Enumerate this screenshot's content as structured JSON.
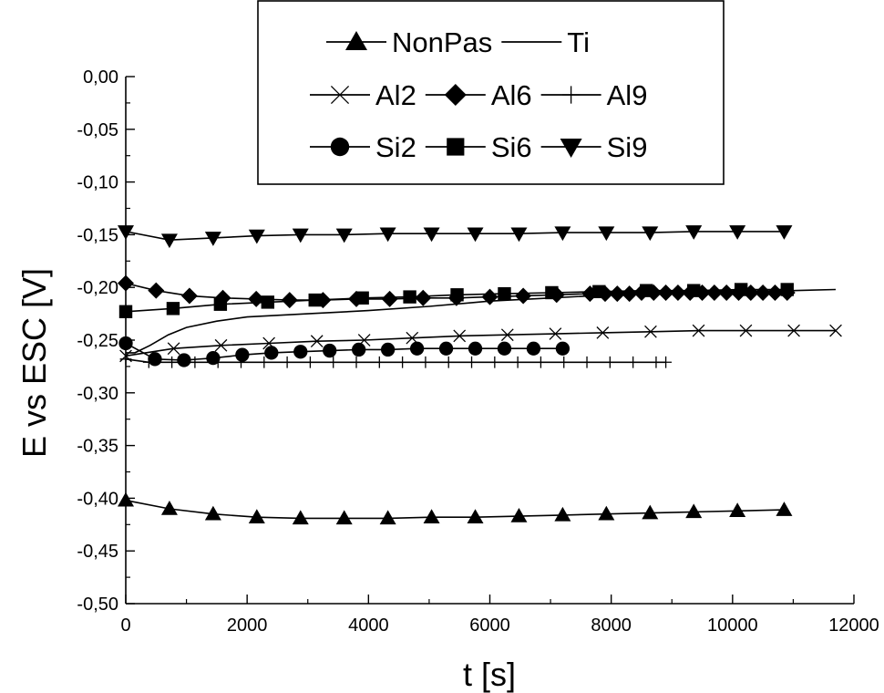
{
  "chart_data": {
    "type": "line",
    "title": "",
    "xlabel": "t [s]",
    "ylabel": "E vs ESC [V]",
    "xlim": [
      0,
      12000
    ],
    "ylim": [
      -0.5,
      0.0
    ],
    "x_ticks": [
      "0",
      "2000",
      "4000",
      "6000",
      "8000",
      "10000",
      "12000"
    ],
    "y_ticks": [
      "0,00",
      "-0,05",
      "-0,10",
      "-0,15",
      "-0,20",
      "-0,25",
      "-0,30",
      "-0,35",
      "-0,40",
      "-0,45",
      "-0,50"
    ],
    "grid": false,
    "legend_position": "top-center",
    "legend_rows": [
      [
        "NonPas",
        "Ti"
      ],
      [
        "Al2",
        "Al6",
        "Al9"
      ],
      [
        "Si2",
        "Si6",
        "Si9"
      ]
    ],
    "series": [
      {
        "name": "NonPas",
        "marker": "triangle-up",
        "x": [
          0,
          720,
          1440,
          2160,
          2880,
          3600,
          4320,
          5040,
          5760,
          6480,
          7200,
          7920,
          8640,
          9360,
          10080,
          10850
        ],
        "y": [
          -0.402,
          -0.41,
          -0.415,
          -0.418,
          -0.419,
          -0.419,
          -0.419,
          -0.418,
          -0.418,
          -0.417,
          -0.416,
          -0.415,
          -0.414,
          -0.413,
          -0.412,
          -0.411
        ]
      },
      {
        "name": "Ti",
        "marker": "none",
        "x": [
          0,
          150,
          400,
          700,
          1000,
          1500,
          2000,
          3000,
          4000,
          5000,
          6000,
          7000,
          8000,
          9000,
          10000,
          11000,
          11700
        ],
        "y": [
          -0.262,
          -0.262,
          -0.255,
          -0.245,
          -0.238,
          -0.232,
          -0.228,
          -0.225,
          -0.222,
          -0.218,
          -0.213,
          -0.21,
          -0.207,
          -0.205,
          -0.204,
          -0.203,
          -0.202
        ]
      },
      {
        "name": "Al2",
        "marker": "x",
        "x": [
          0,
          790,
          1570,
          2360,
          3150,
          3930,
          4720,
          5500,
          6290,
          7080,
          7860,
          8650,
          9440,
          10220,
          11010,
          11700
        ],
        "y": [
          -0.265,
          -0.258,
          -0.255,
          -0.253,
          -0.251,
          -0.25,
          -0.248,
          -0.246,
          -0.245,
          -0.244,
          -0.243,
          -0.242,
          -0.241,
          -0.241,
          -0.241,
          -0.241
        ]
      },
      {
        "name": "Al6",
        "marker": "diamond",
        "x": [
          0,
          500,
          1050,
          1600,
          2150,
          2700,
          3250,
          3800,
          4350,
          4900,
          5450,
          6000,
          6550,
          7100,
          7650,
          7900,
          8100,
          8300,
          8500,
          8700,
          8900,
          9100,
          9300,
          9500,
          9700,
          9900,
          10100,
          10300,
          10500,
          10700,
          10900
        ],
        "y": [
          -0.196,
          -0.203,
          -0.208,
          -0.21,
          -0.211,
          -0.212,
          -0.212,
          -0.211,
          -0.211,
          -0.21,
          -0.21,
          -0.209,
          -0.208,
          -0.207,
          -0.206,
          -0.206,
          -0.206,
          -0.206,
          -0.205,
          -0.205,
          -0.205,
          -0.205,
          -0.205,
          -0.205,
          -0.205,
          -0.205,
          -0.205,
          -0.205,
          -0.205,
          -0.205,
          -0.205
        ]
      },
      {
        "name": "Al9",
        "marker": "plus",
        "x": [
          0,
          380,
          760,
          1140,
          1520,
          1900,
          2280,
          2660,
          3040,
          3420,
          3800,
          4180,
          4560,
          4940,
          5320,
          5700,
          6080,
          6460,
          6840,
          7220,
          7600,
          7980,
          8360,
          8740,
          8900
        ],
        "y": [
          -0.268,
          -0.271,
          -0.271,
          -0.271,
          -0.271,
          -0.271,
          -0.271,
          -0.271,
          -0.271,
          -0.271,
          -0.271,
          -0.271,
          -0.271,
          -0.271,
          -0.271,
          -0.271,
          -0.271,
          -0.271,
          -0.271,
          -0.271,
          -0.271,
          -0.271,
          -0.271,
          -0.271,
          -0.271
        ]
      },
      {
        "name": "Si2",
        "marker": "circle",
        "x": [
          0,
          480,
          960,
          1440,
          1920,
          2400,
          2880,
          3360,
          3840,
          4320,
          4800,
          5280,
          5760,
          6240,
          6720,
          7200
        ],
        "y": [
          -0.253,
          -0.268,
          -0.269,
          -0.267,
          -0.264,
          -0.262,
          -0.261,
          -0.26,
          -0.259,
          -0.259,
          -0.258,
          -0.258,
          -0.258,
          -0.258,
          -0.258,
          -0.258
        ]
      },
      {
        "name": "Si6",
        "marker": "square",
        "x": [
          0,
          780,
          1560,
          2340,
          3120,
          3900,
          4680,
          5460,
          6240,
          7020,
          7800,
          8580,
          9360,
          10140,
          10900
        ],
        "y": [
          -0.223,
          -0.22,
          -0.216,
          -0.214,
          -0.212,
          -0.21,
          -0.209,
          -0.207,
          -0.206,
          -0.205,
          -0.204,
          -0.203,
          -0.203,
          -0.202,
          -0.202
        ]
      },
      {
        "name": "Si9",
        "marker": "triangle-down",
        "x": [
          0,
          720,
          1440,
          2160,
          2880,
          3600,
          4320,
          5040,
          5760,
          6480,
          7200,
          7920,
          8640,
          9360,
          10080,
          10850
        ],
        "y": [
          -0.147,
          -0.155,
          -0.153,
          -0.151,
          -0.15,
          -0.15,
          -0.149,
          -0.149,
          -0.149,
          -0.149,
          -0.148,
          -0.148,
          -0.148,
          -0.147,
          -0.147,
          -0.147
        ]
      }
    ]
  }
}
